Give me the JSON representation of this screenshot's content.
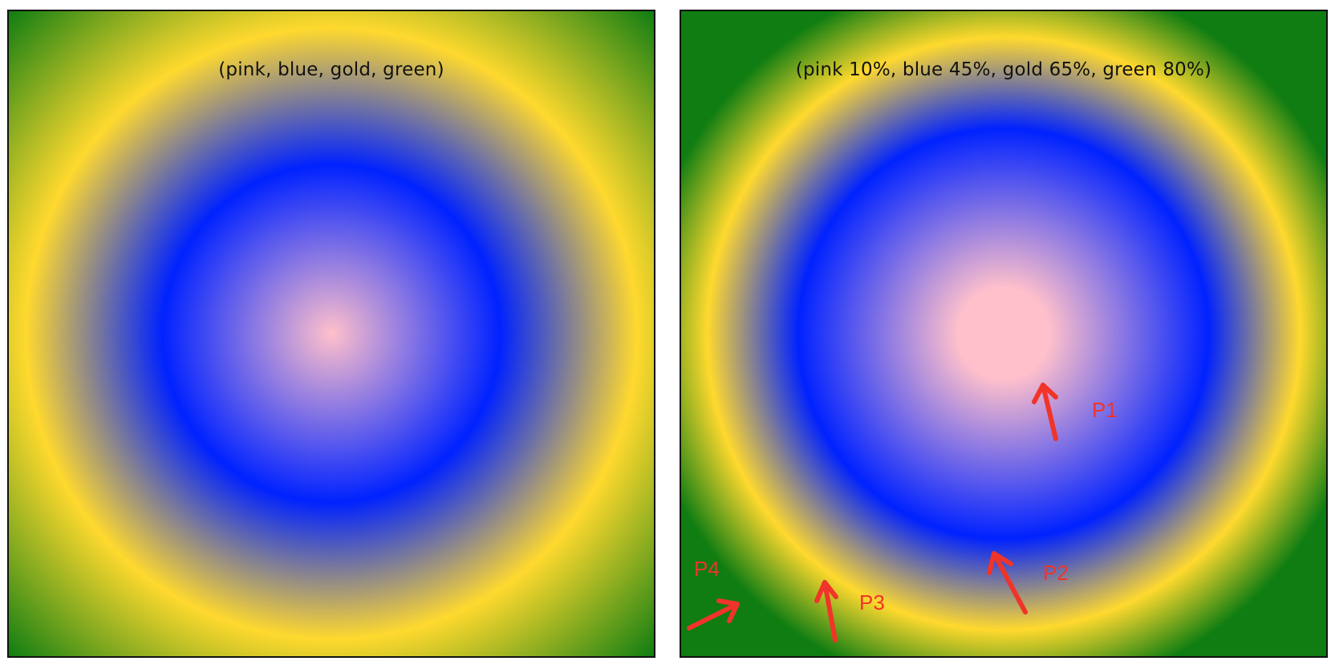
{
  "panels": [
    {
      "caption": "(pink, blue, gold, green)",
      "gradient": {
        "type": "radial",
        "stops": [
          {
            "color": "pink",
            "position": null
          },
          {
            "color": "blue",
            "position": null
          },
          {
            "color": "gold",
            "position": null
          },
          {
            "color": "green",
            "position": null
          }
        ]
      }
    },
    {
      "caption": "(pink 10%, blue 45%, gold 65%, green 80%)",
      "gradient": {
        "type": "radial",
        "stops": [
          {
            "color": "pink",
            "position": "10%"
          },
          {
            "color": "blue",
            "position": "45%"
          },
          {
            "color": "gold",
            "position": "65%"
          },
          {
            "color": "green",
            "position": "80%"
          }
        ]
      },
      "annotations": [
        "P1",
        "P2",
        "P3",
        "P4"
      ]
    }
  ],
  "colors": {
    "pink": "#ffc0cb",
    "blue": "#0022ff",
    "gold": "#ffd92e",
    "green": "#0f7d12",
    "annotation": "#f0342a",
    "border": "#111111"
  }
}
